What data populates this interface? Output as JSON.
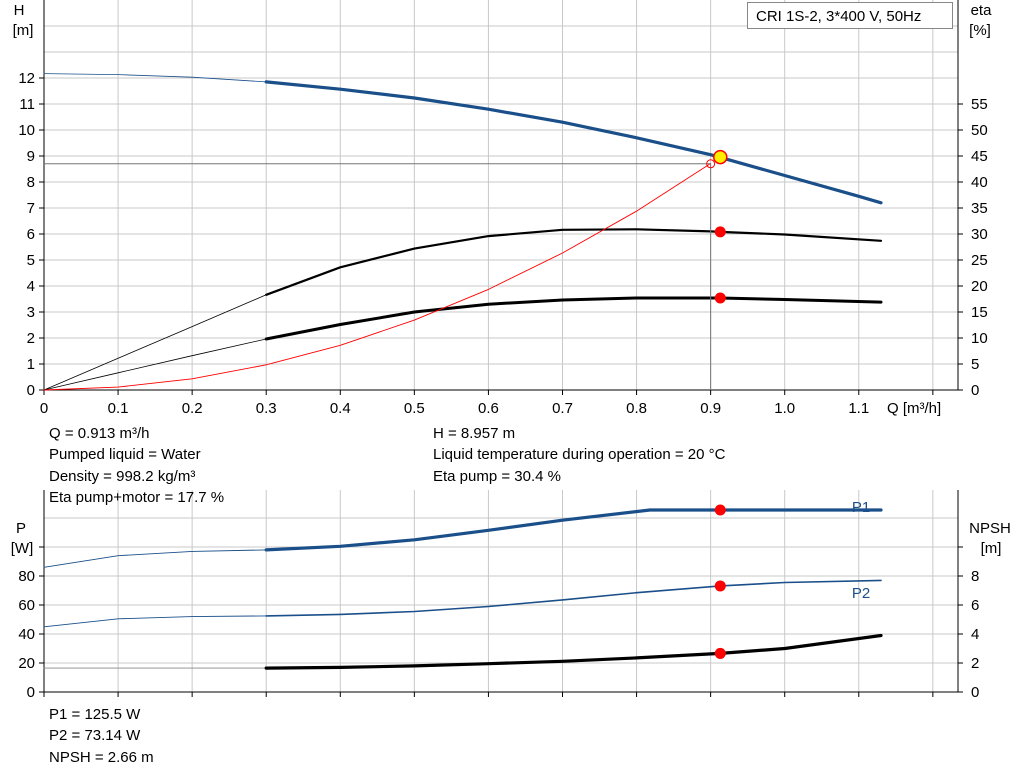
{
  "title": "CRI 1S-2, 3*400 V, 50Hz",
  "info_top_left": [
    "Q = 0.913 m³/h",
    "Pumped liquid = Water",
    "Density = 998.2 kg/m³",
    "Eta pump+motor = 17.7 %"
  ],
  "info_top_right": [
    "H = 8.957 m",
    "Liquid temperature during operation = 20 °C",
    "Eta pump = 30.4 %"
  ],
  "info_bottom": [
    "P1 = 125.5 W",
    "P2 = 73.14 W",
    "NPSH = 2.66 m"
  ],
  "colors": {
    "blue": "#1a4f8a",
    "black": "#000000",
    "red": "#ff0000",
    "grid": "#c8c8c8",
    "duty": "#ffee00"
  },
  "chart_data": [
    {
      "type": "line",
      "name": "H / eta curves",
      "x_axis": {
        "label": "Q [m³/h]",
        "range": [
          0,
          1.2
        ],
        "ticks": [
          "0",
          "0.1",
          "0.2",
          "0.3",
          "0.4",
          "0.5",
          "0.6",
          "0.7",
          "0.8",
          "0.9",
          "1.0",
          "1.1"
        ]
      },
      "y_left": {
        "label": [
          "H",
          "[m]"
        ],
        "range": [
          0,
          14.7
        ],
        "ticks": [
          "0",
          "1",
          "2",
          "3",
          "4",
          "5",
          "6",
          "7",
          "8",
          "9",
          "10",
          "11",
          "12"
        ]
      },
      "y_right": {
        "label": [
          "eta",
          "[%]"
        ],
        "range": [
          0,
          73.5
        ],
        "ticks": [
          "0",
          "5",
          "10",
          "15",
          "20",
          "25",
          "30",
          "35",
          "40",
          "45",
          "50",
          "55"
        ]
      },
      "grid": true,
      "series": [
        {
          "role": "head",
          "color": "blue",
          "axis": "left",
          "thin": {
            "x": [
              0,
              0.1,
              0.2,
              0.3
            ],
            "y": [
              12.17,
              12.13,
              12.03,
              11.85
            ]
          },
          "thick": {
            "x": [
              0.3,
              0.4,
              0.5,
              0.6,
              0.7,
              0.8,
              0.9,
              1.0,
              1.1,
              1.13
            ],
            "y": [
              11.85,
              11.57,
              11.23,
              10.8,
              10.3,
              9.7,
              9.05,
              8.25,
              7.45,
              7.2
            ]
          }
        },
        {
          "role": "eta pump",
          "color": "black",
          "axis": "right",
          "thin": {
            "x": [
              0,
              0.1,
              0.2,
              0.3
            ],
            "y": [
              0,
              6.1,
              12.2,
              18.3
            ]
          },
          "thick": {
            "x": [
              0.3,
              0.4,
              0.5,
              0.6,
              0.7,
              0.8,
              0.9,
              0.913,
              1.0,
              1.13
            ],
            "y": [
              18.3,
              23.6,
              27.2,
              29.6,
              30.8,
              30.9,
              30.5,
              30.4,
              29.9,
              28.7
            ]
          }
        },
        {
          "role": "eta pump+motor",
          "color": "black",
          "axis": "right",
          "thin": {
            "x": [
              0,
              0.1,
              0.2,
              0.3
            ],
            "y": [
              0,
              3.3,
              6.6,
              9.8
            ]
          },
          "thick": {
            "x": [
              0.3,
              0.4,
              0.5,
              0.6,
              0.7,
              0.8,
              0.9,
              0.913,
              1.0,
              1.13
            ],
            "y": [
              9.8,
              12.6,
              15.0,
              16.5,
              17.3,
              17.7,
              17.7,
              17.7,
              17.4,
              16.9
            ]
          }
        },
        {
          "role": "system curve",
          "color": "red",
          "axis": "left",
          "x": [
            0,
            0.1,
            0.2,
            0.3,
            0.4,
            0.5,
            0.6,
            0.7,
            0.8,
            0.9
          ],
          "y": [
            0,
            0.11,
            0.43,
            0.97,
            1.72,
            2.69,
            3.87,
            5.27,
            6.88,
            8.71
          ]
        }
      ],
      "operating_point": {
        "q": 0.913,
        "h": 8.957,
        "eta_pump": 30.4,
        "eta_total": 17.7
      },
      "reference_line": {
        "q": 0.9,
        "h": 8.7
      }
    },
    {
      "type": "line",
      "name": "Power / NPSH curves",
      "x_range": [
        0,
        1.2
      ],
      "y_left": {
        "label": [
          "P",
          "[W]"
        ],
        "range": [
          0,
          138
        ],
        "ticks": [
          "0",
          "20",
          "40",
          "60",
          "80"
        ]
      },
      "y_right": {
        "label": [
          "NPSH",
          "[m]"
        ],
        "range": [
          0,
          13.8
        ],
        "ticks": [
          "0",
          "2",
          "4",
          "6",
          "8"
        ]
      },
      "grid": true,
      "series": [
        {
          "name": "P1",
          "color": "blue",
          "axis": "left",
          "thin": {
            "x": [
              0,
              0.1,
              0.2,
              0.3
            ],
            "y": [
              86,
              94,
              97,
              98
            ]
          },
          "thick": {
            "x": [
              0.3,
              0.4,
              0.5,
              0.6,
              0.7,
              0.818,
              0.913,
              1.0,
              1.13
            ],
            "y": [
              98,
              100.5,
              105,
              111.5,
              118.5,
              125.5,
              125.5,
              125.5,
              125.5
            ]
          }
        },
        {
          "name": "P2",
          "color": "blue",
          "axis": "left",
          "thin": {
            "x": [
              0,
              0.1,
              0.2,
              0.3
            ],
            "y": [
              45,
              50.5,
              52,
              52.5
            ]
          },
          "thick": {
            "x": [
              0.3,
              0.4,
              0.5,
              0.6,
              0.7,
              0.8,
              0.913,
              1.0,
              1.13
            ],
            "y": [
              52.5,
              53.5,
              55.5,
              59,
              63.5,
              68.5,
              73.14,
              75.5,
              77
            ]
          }
        },
        {
          "role": "NPSH",
          "color": "black",
          "axis": "right",
          "thin": {
            "x": [
              0,
              0.3
            ],
            "y": [
              1.65,
              1.65
            ]
          },
          "thick": {
            "x": [
              0.3,
              0.4,
              0.5,
              0.6,
              0.7,
              0.8,
              0.913,
              1.0,
              1.13
            ],
            "y": [
              1.65,
              1.7,
              1.8,
              1.95,
              2.12,
              2.35,
              2.66,
              3.0,
              3.9
            ]
          }
        }
      ],
      "operating_points": [
        {
          "series": "P1",
          "q": 0.913,
          "value": 125.5
        },
        {
          "series": "P2",
          "q": 0.913,
          "value": 73.14
        },
        {
          "series": "NPSH",
          "q": 0.913,
          "value": 2.66
        }
      ]
    }
  ]
}
